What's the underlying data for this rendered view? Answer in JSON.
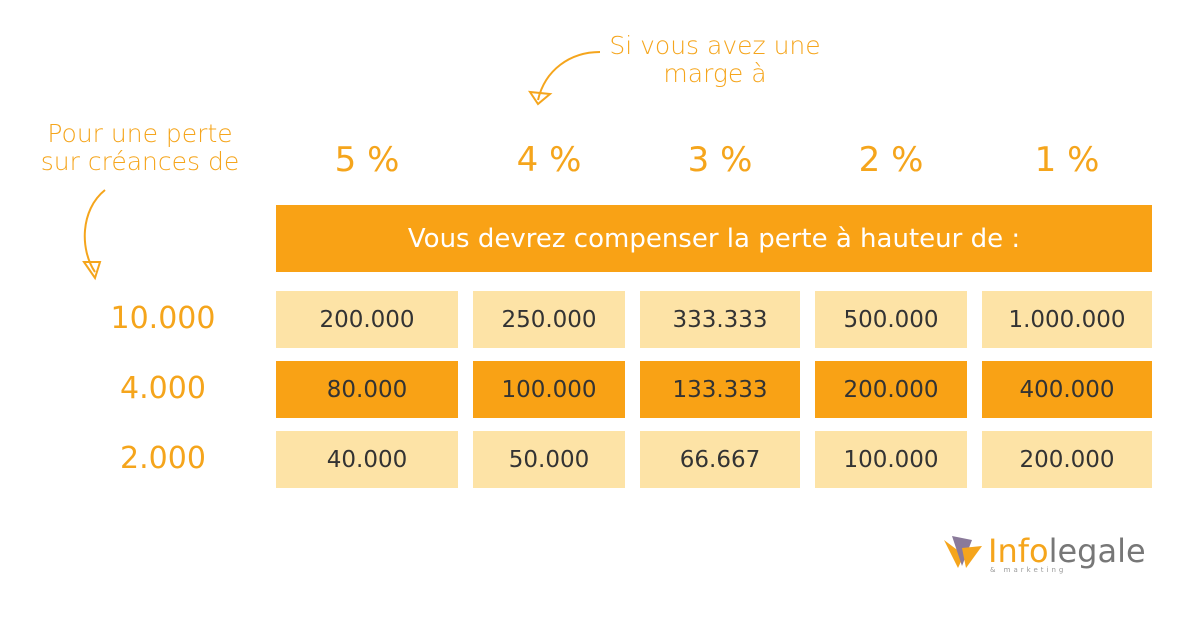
{
  "margin_label": [
    "Si vous avez une",
    "marge à"
  ],
  "loss_label": [
    "Pour une perte",
    "sur créances de"
  ],
  "margins": [
    "5 %",
    "4 %",
    "3 %",
    "2 %",
    "1 %"
  ],
  "banner": "Vous devrez compenser la perte à hauteur de :",
  "table": {
    "rows": [
      {
        "loss": "10.000",
        "cells": [
          "200.000",
          "250.000",
          "333.333",
          "500.000",
          "1.000.000"
        ]
      },
      {
        "loss": "4.000",
        "cells": [
          "80.000",
          "100.000",
          "133.333",
          "200.000",
          "400.000"
        ]
      },
      {
        "loss": "2.000",
        "cells": [
          "40.000",
          "50.000",
          "66.667",
          "100.000",
          "200.000"
        ]
      }
    ]
  },
  "logo": {
    "part1": "Info",
    "part2": "legale",
    "tagline": "& marketing"
  }
}
